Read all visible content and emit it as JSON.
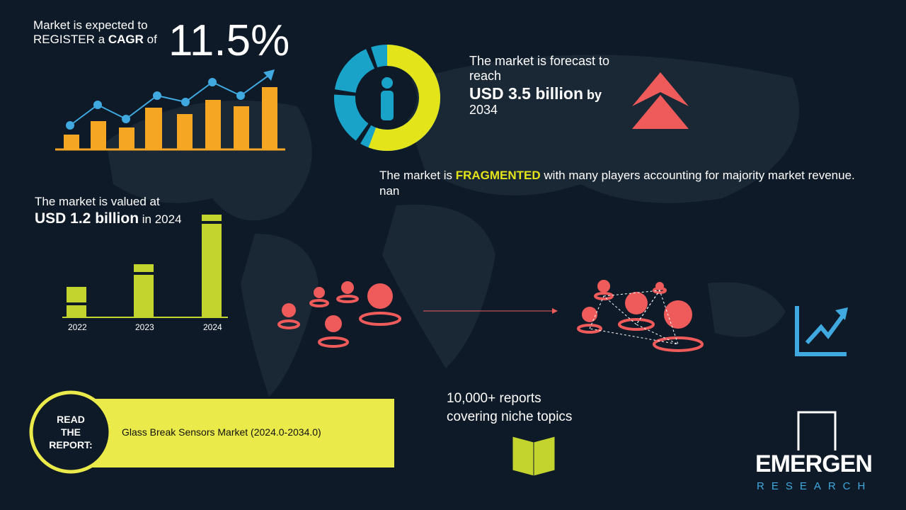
{
  "cagr": {
    "line1": "Market is expected to",
    "line2_prefix": "REGISTER a",
    "line2_bold": "CAGR",
    "line2_suffix": "of",
    "value": "11.5%"
  },
  "forecast": {
    "line1": "The market is forecast to reach",
    "amount": "USD 3.5 billion",
    "by": "by",
    "year": "2034"
  },
  "fragmented": {
    "prefix": "The market is",
    "highlight": "FRAGMENTED",
    "suffix": "with many players accounting for majority market revenue. nan"
  },
  "valued": {
    "line1": "The market is valued at",
    "amount": "USD 1.2 billion",
    "suffix": "in 2024",
    "years": [
      "2022",
      "2023",
      "2024"
    ]
  },
  "reports": {
    "line1": "10,000+ reports",
    "line2": "covering niche topics"
  },
  "read": {
    "label": "READ THE REPORT:",
    "title": "Glass Break Sensors Market (2024.0-2034.0)"
  },
  "logo": {
    "name": "EMERGEN",
    "sub": "RESEARCH"
  }
}
